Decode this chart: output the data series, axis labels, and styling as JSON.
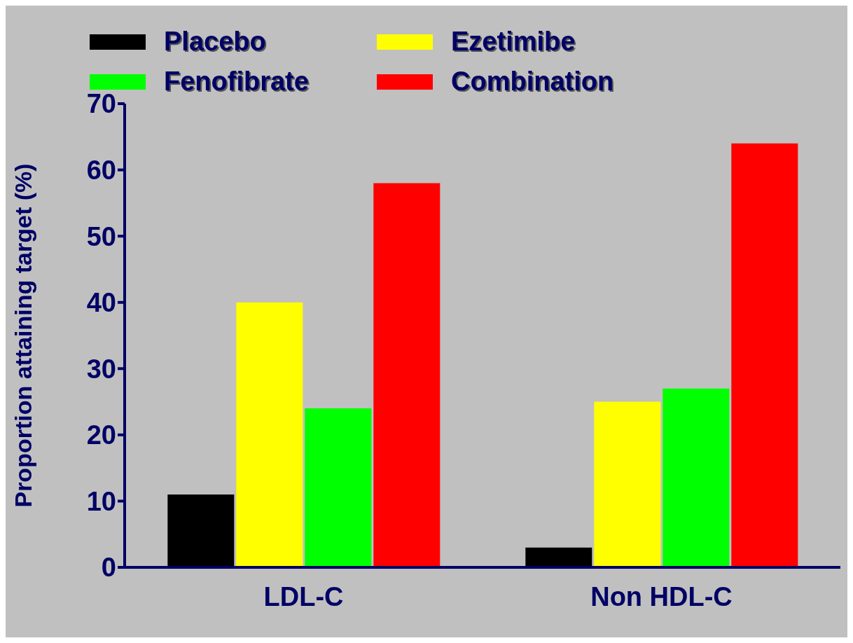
{
  "chart_data": {
    "type": "bar",
    "ylabel": "Proportion attaining target (%)",
    "categories": [
      "LDL-C",
      "Non HDL-C"
    ],
    "series": [
      {
        "name": "Placebo",
        "color": "#000000",
        "values": [
          11,
          3
        ]
      },
      {
        "name": "Ezetimibe",
        "color": "#ffff00",
        "values": [
          40,
          25
        ]
      },
      {
        "name": "Fenofibrate",
        "color": "#00ff00",
        "values": [
          24,
          27
        ]
      },
      {
        "name": "Combination",
        "color": "#ff0000",
        "values": [
          58,
          64
        ]
      }
    ],
    "ylim": [
      0,
      70
    ],
    "yticks": [
      0,
      10,
      20,
      30,
      40,
      50,
      60,
      70
    ],
    "grid": false,
    "legend": "top"
  }
}
